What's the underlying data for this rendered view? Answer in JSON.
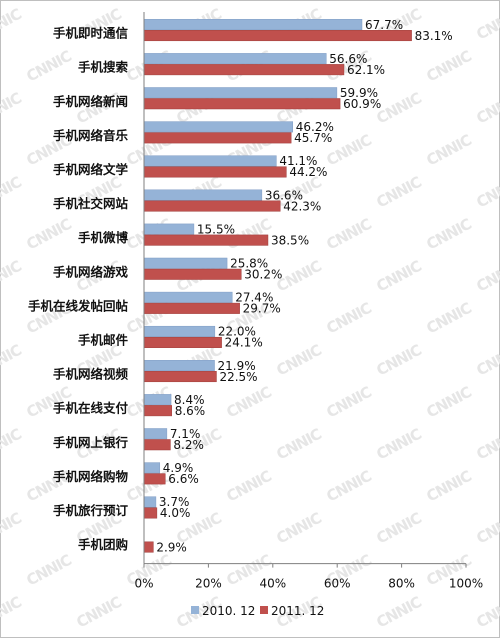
{
  "chart_data": {
    "type": "bar",
    "orientation": "horizontal",
    "watermark": "CNNIC",
    "categories": [
      "手机即时通信",
      "手机搜索",
      "手机网络新闻",
      "手机网络音乐",
      "手机网络文学",
      "手机社交网站",
      "手机微博",
      "手机网络游戏",
      "手机在线发帖回帖",
      "手机邮件",
      "手机网络视频",
      "手机在线支付",
      "手机网上银行",
      "手机网络购物",
      "手机旅行预订",
      "手机团购"
    ],
    "series": [
      {
        "name": "2010. 12",
        "color": "#95b3d7",
        "values": [
          67.7,
          56.6,
          59.9,
          46.2,
          41.1,
          36.6,
          15.5,
          25.8,
          27.4,
          22.0,
          21.9,
          8.4,
          7.1,
          4.9,
          3.7,
          null
        ],
        "labels": [
          "67.7%",
          "56.6%",
          "59.9%",
          "46.2%",
          "41.1%",
          "36.6%",
          "15.5%",
          "25.8%",
          "27.4%",
          "22.0%",
          "21.9%",
          "8.4%",
          "7.1%",
          "4.9%",
          "3.7%",
          ""
        ]
      },
      {
        "name": "2011. 12",
        "color": "#c0504d",
        "values": [
          83.1,
          62.1,
          60.9,
          45.7,
          44.2,
          42.3,
          38.5,
          30.2,
          29.7,
          24.1,
          22.5,
          8.6,
          8.2,
          6.6,
          4.0,
          2.9
        ],
        "labels": [
          "83.1%",
          "62.1%",
          "60.9%",
          "45.7%",
          "44.2%",
          "42.3%",
          "38.5%",
          "30.2%",
          "29.7%",
          "24.1%",
          "22.5%",
          "8.6%",
          "8.2%",
          "6.6%",
          "4.0%",
          "2.9%"
        ]
      }
    ],
    "xlim": [
      0,
      100
    ],
    "x_ticks": [
      "0%",
      "20%",
      "40%",
      "60%",
      "80%",
      "100%"
    ],
    "grid": false,
    "legend_position": "bottom"
  }
}
